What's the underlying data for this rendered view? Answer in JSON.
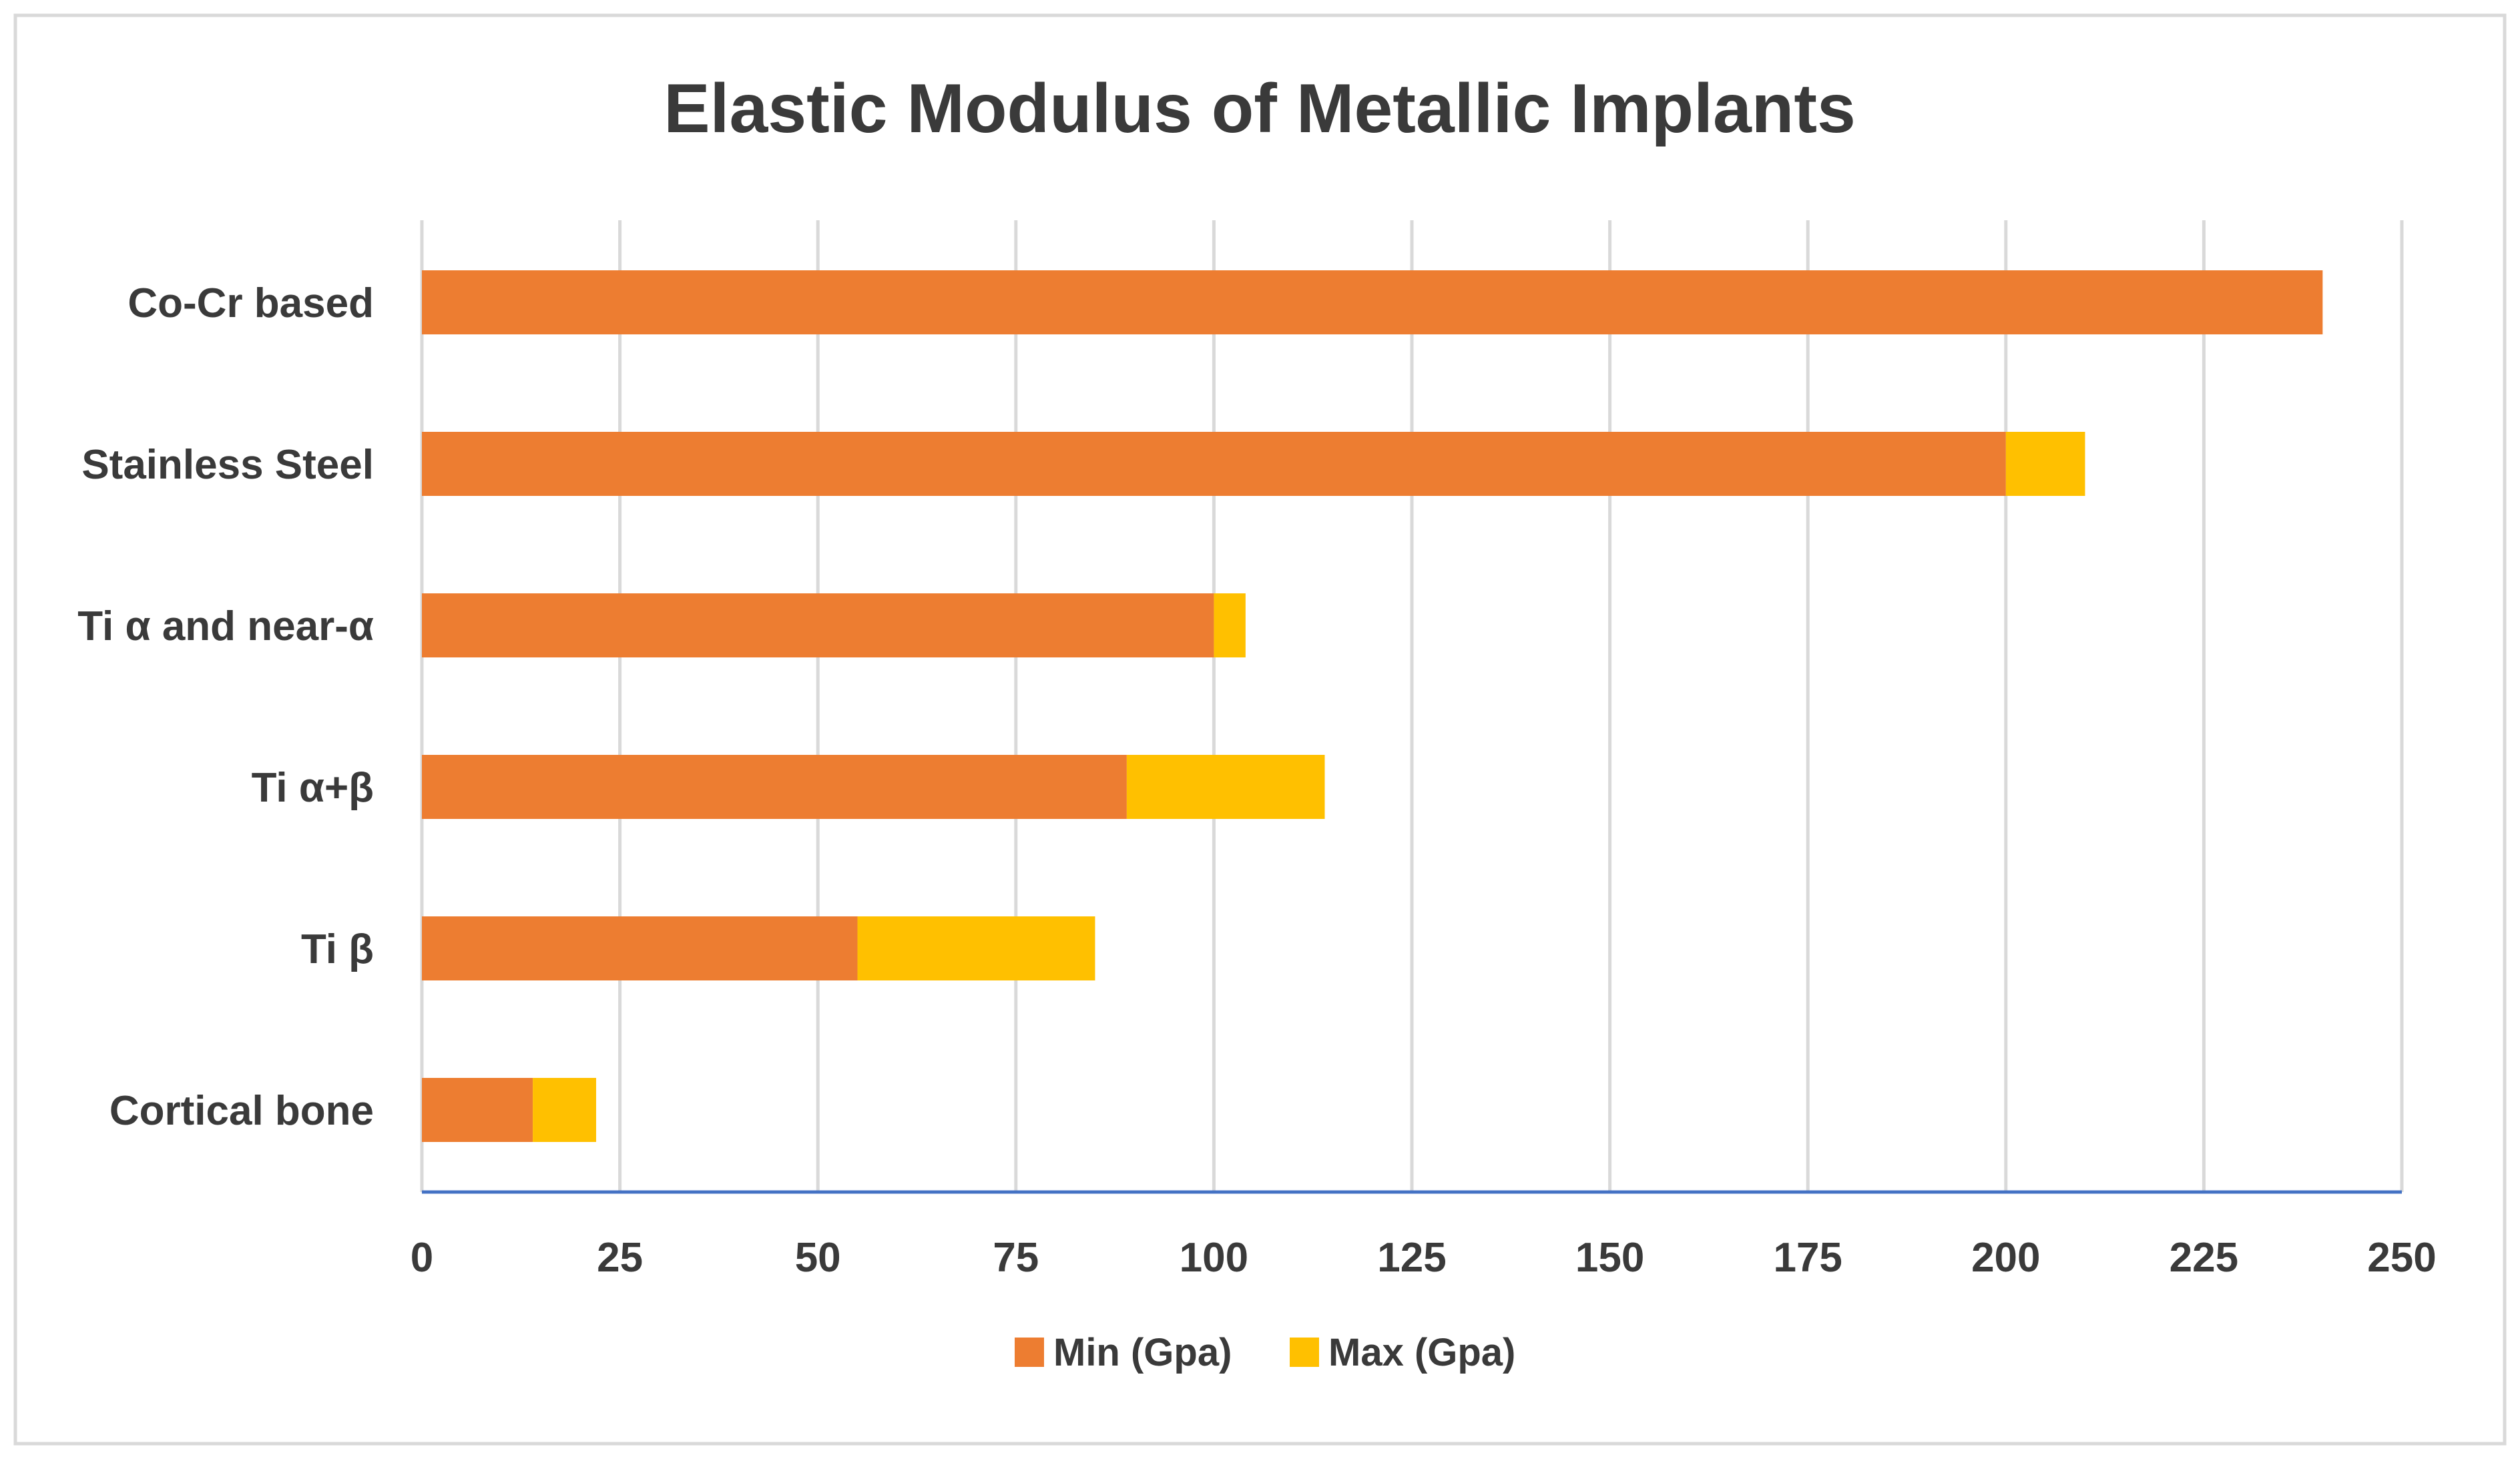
{
  "chart_data": {
    "type": "bar",
    "orientation": "horizontal",
    "stacked": true,
    "title": "Elastic Modulus of Metallic Implants",
    "xlabel": "",
    "ylabel": "",
    "xlim": [
      0,
      250
    ],
    "ticks": [
      0,
      25,
      50,
      75,
      100,
      125,
      150,
      175,
      200,
      225,
      250
    ],
    "grid": true,
    "legend_position": "bottom",
    "categories": [
      "Co-Cr based",
      "Stainless Steel",
      "Ti α and near-α",
      "Ti α+β",
      "Ti β",
      "Cortical bone"
    ],
    "series": [
      {
        "name": "Min (Gpa)",
        "values": [
          240,
          200,
          100,
          89,
          55,
          14
        ],
        "color": "#ED7D31"
      },
      {
        "name": "Max (Gpa)",
        "values": [
          0,
          10,
          4,
          25,
          30,
          8
        ],
        "color": "#FFC000"
      }
    ]
  },
  "colors": {
    "text": "#3a3a3a",
    "grid": "#d9d9d9",
    "axis": "#4472c4",
    "frame": "#d9d9d9",
    "background": "#ffffff"
  }
}
